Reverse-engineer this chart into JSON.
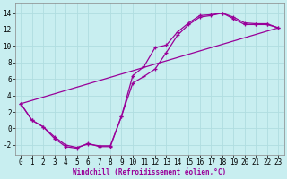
{
  "xlabel": "Windchill (Refroidissement éolien,°C)",
  "bg_color": "#c8eef0",
  "grid_color": "#b0dde0",
  "line_color": "#990099",
  "xlim": [
    -0.5,
    23.5
  ],
  "ylim": [
    -3.2,
    15.2
  ],
  "xticks": [
    0,
    1,
    2,
    3,
    4,
    5,
    6,
    7,
    8,
    9,
    10,
    11,
    12,
    13,
    14,
    15,
    16,
    17,
    18,
    19,
    20,
    21,
    22,
    23
  ],
  "yticks": [
    -2,
    0,
    2,
    4,
    6,
    8,
    10,
    12,
    14
  ],
  "line1_x": [
    0,
    1,
    2,
    3,
    4,
    5,
    6,
    7,
    8,
    9,
    10,
    11,
    12,
    13,
    14,
    15,
    16,
    17,
    18,
    19,
    20,
    21,
    22,
    23
  ],
  "line1_y": [
    3.0,
    1.0,
    0.2,
    -1.2,
    -2.2,
    -2.4,
    -1.8,
    -2.2,
    -2.2,
    1.5,
    6.4,
    7.5,
    9.8,
    10.1,
    11.7,
    12.8,
    13.7,
    13.8,
    14.0,
    13.5,
    12.8,
    12.7,
    12.7,
    12.2
  ],
  "line2_x": [
    0,
    1,
    2,
    3,
    4,
    5,
    6,
    7,
    8,
    9,
    10,
    11,
    12,
    13,
    14,
    15,
    16,
    17,
    18,
    19,
    20,
    21,
    22,
    23
  ],
  "line2_y": [
    3.0,
    1.0,
    0.2,
    -1.0,
    -2.0,
    -2.3,
    -1.9,
    -2.1,
    -2.1,
    1.5,
    5.5,
    6.3,
    7.2,
    9.2,
    11.3,
    12.6,
    13.5,
    13.7,
    14.0,
    13.3,
    12.6,
    12.6,
    12.6,
    12.2
  ],
  "line3_x": [
    0,
    23
  ],
  "line3_y": [
    3.0,
    12.2
  ],
  "tick_fontsize": 5.5,
  "xlabel_fontsize": 5.5
}
